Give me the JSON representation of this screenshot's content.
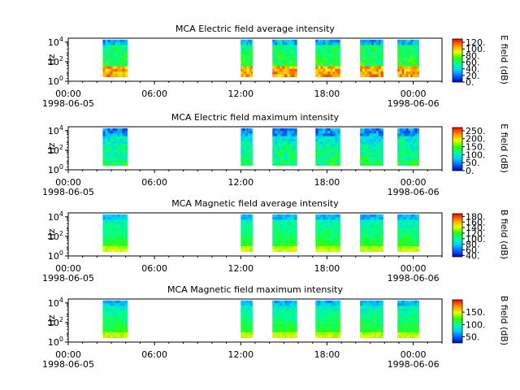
{
  "chart_data": [
    {
      "type": "heatmap",
      "title": "MCA  Electric field average intensity",
      "ylabel": "Hz",
      "colorbar_label": "E field (dB)",
      "colorbar_ticks": [
        "0.",
        "20.",
        "40.",
        "60.",
        "80.",
        "100.",
        "120."
      ],
      "colorbar_range": [
        0,
        130
      ],
      "ylim_log10": [
        0,
        4.4
      ],
      "y_ticks": [
        {
          "base": "10",
          "exp": "0"
        },
        {
          "base": "10",
          "exp": "2"
        },
        {
          "base": "10",
          "exp": "4"
        }
      ],
      "x_ticks": [
        "00:00",
        "06:00",
        "12:00",
        "18:00",
        "00:00"
      ],
      "x_dates": [
        "1998-06-05",
        "1998-06-06"
      ],
      "x_range_hours": [
        0,
        26
      ],
      "data_intervals_hours": [
        [
          2.4,
          4.1
        ],
        [
          12.0,
          12.8
        ],
        [
          14.2,
          15.9
        ],
        [
          17.2,
          18.9
        ],
        [
          20.3,
          21.9
        ],
        [
          22.9,
          24.4
        ]
      ],
      "palette": "low-band-hot"
    },
    {
      "type": "heatmap",
      "title": "MCA  Electric field maximum intensity",
      "ylabel": "Hz",
      "colorbar_label": "E field (dB)",
      "colorbar_ticks": [
        "0.",
        "50.",
        "100.",
        "150.",
        "200.",
        "250."
      ],
      "colorbar_range": [
        0,
        270
      ],
      "ylim_log10": [
        0,
        4.4
      ],
      "y_ticks": [
        {
          "base": "10",
          "exp": "0"
        },
        {
          "base": "10",
          "exp": "2"
        },
        {
          "base": "10",
          "exp": "4"
        }
      ],
      "x_ticks": [
        "00:00",
        "06:00",
        "12:00",
        "18:00",
        "00:00"
      ],
      "x_dates": [
        "1998-06-05",
        "1998-06-06"
      ],
      "x_range_hours": [
        0,
        26
      ],
      "data_intervals_hours": [
        [
          2.4,
          4.1
        ],
        [
          12.0,
          12.8
        ],
        [
          14.2,
          15.9
        ],
        [
          17.2,
          18.9
        ],
        [
          20.3,
          21.9
        ],
        [
          22.9,
          24.4
        ]
      ],
      "palette": "cool"
    },
    {
      "type": "heatmap",
      "title": "MCA  Magnetic field average intensity",
      "ylabel": "Hz",
      "colorbar_label": "B field (dB)",
      "colorbar_ticks": [
        "40.",
        "60.",
        "80.",
        "100.",
        "120.",
        "140.",
        "160.",
        "180."
      ],
      "colorbar_range": [
        35,
        190
      ],
      "ylim_log10": [
        0,
        4.4
      ],
      "y_ticks": [
        {
          "base": "10",
          "exp": "0"
        },
        {
          "base": "10",
          "exp": "2"
        },
        {
          "base": "10",
          "exp": "4"
        }
      ],
      "x_ticks": [
        "00:00",
        "06:00",
        "12:00",
        "18:00",
        "00:00"
      ],
      "x_dates": [
        "1998-06-05",
        "1998-06-06"
      ],
      "x_range_hours": [
        0,
        26
      ],
      "data_intervals_hours": [
        [
          2.4,
          4.1
        ],
        [
          12.0,
          12.8
        ],
        [
          14.2,
          15.9
        ],
        [
          17.2,
          18.9
        ],
        [
          20.3,
          21.9
        ],
        [
          22.9,
          24.4
        ]
      ],
      "palette": "low-band-warm"
    },
    {
      "type": "heatmap",
      "title": "MCA  Magnetic field maximum intensity",
      "ylabel": "Hz",
      "colorbar_label": "B field (dB)",
      "colorbar_ticks": [
        "50.",
        "100.",
        "150."
      ],
      "colorbar_range": [
        25,
        200
      ],
      "ylim_log10": [
        0,
        4.4
      ],
      "y_ticks": [
        {
          "base": "10",
          "exp": "0"
        },
        {
          "base": "10",
          "exp": "2"
        },
        {
          "base": "10",
          "exp": "4"
        }
      ],
      "x_ticks": [
        "00:00",
        "06:00",
        "12:00",
        "18:00",
        "00:00"
      ],
      "x_dates": [
        "1998-06-05",
        "1998-06-06"
      ],
      "x_range_hours": [
        0,
        26
      ],
      "data_intervals_hours": [
        [
          2.4,
          4.1
        ],
        [
          12.0,
          12.8
        ],
        [
          14.2,
          15.9
        ],
        [
          17.2,
          18.9
        ],
        [
          20.3,
          21.9
        ],
        [
          22.9,
          24.4
        ]
      ],
      "palette": "low-band-warm"
    }
  ]
}
